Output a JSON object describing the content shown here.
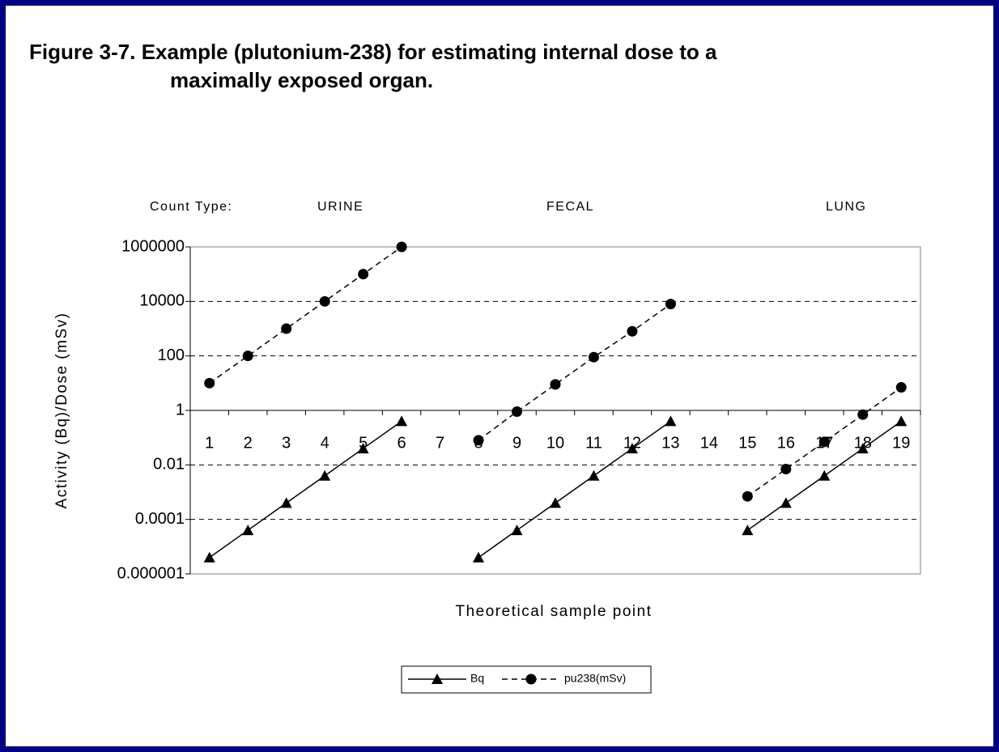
{
  "chart_data": {
    "type": "line",
    "title": [
      "Figure 3-7.  Example (plutonium-238) for estimating internal dose to a",
      "maximally exposed organ."
    ],
    "annotations": [
      "Count Type:",
      "URINE",
      "FECAL",
      "LUNG"
    ],
    "xlabel": "Theoretical sample point",
    "ylabel": "Activity (Bq)/Dose (mSv)",
    "categories": [
      "1",
      "2",
      "3",
      "4",
      "5",
      "6",
      "7",
      "8",
      "9",
      "10",
      "11",
      "12",
      "13",
      "14",
      "15",
      "16",
      "17",
      "18",
      "19"
    ],
    "series": [
      {
        "name": "Bq",
        "color": "#000000",
        "marker": "triangle",
        "linestyle": "solid",
        "values": [
          4e-06,
          4e-05,
          0.0004,
          0.004,
          0.04,
          0.4,
          null,
          4e-06,
          4e-05,
          0.0004,
          0.004,
          0.04,
          0.4,
          null,
          4e-05,
          0.0004,
          0.004,
          0.04,
          0.4
        ]
      },
      {
        "name": "pu238(mSv)",
        "color": "#000000",
        "marker": "circle",
        "linestyle": "dashed",
        "values": [
          10,
          100,
          1000,
          10000,
          100000,
          1000000,
          null,
          0.08,
          0.9,
          9,
          90,
          800,
          8000,
          null,
          0.0007,
          0.007,
          0.07,
          0.7,
          7
        ]
      }
    ],
    "yscale": "log",
    "ylim": [
      1e-06,
      1000000
    ],
    "yticks": [
      1000000,
      10000,
      100,
      1,
      0.01,
      0.0001,
      1e-06
    ],
    "xaxis_at": 1,
    "grid": true,
    "legend": "bottom"
  }
}
